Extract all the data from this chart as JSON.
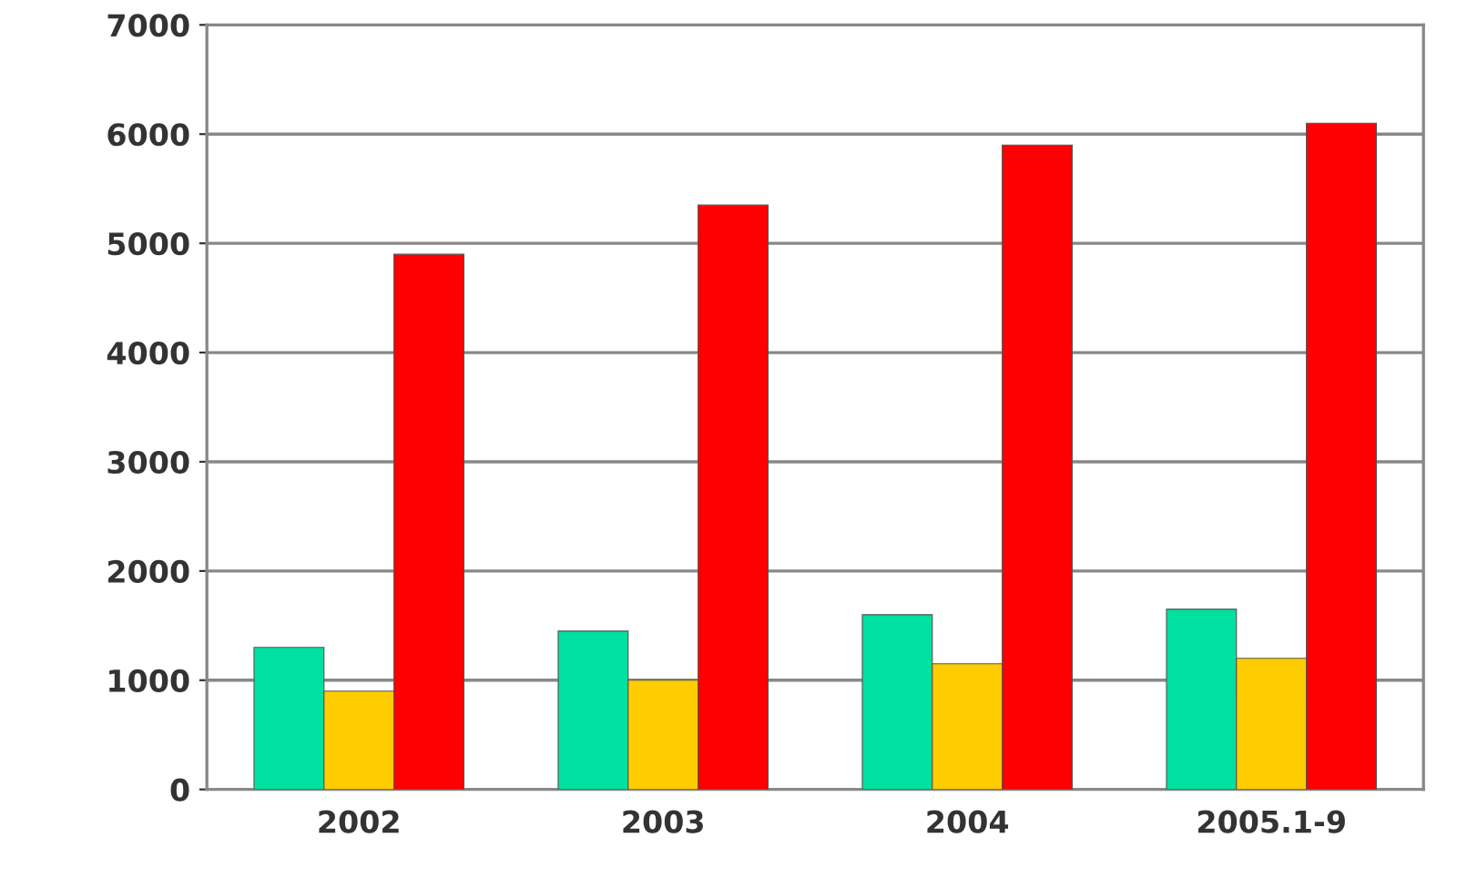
{
  "chart_data": {
    "type": "bar",
    "categories": [
      "2002",
      "2003",
      "2004",
      "2005.1-9"
    ],
    "series": [
      {
        "color": "#00e0a0",
        "values": [
          1300,
          1450,
          1600,
          1650
        ]
      },
      {
        "color": "#ffcc00",
        "values": [
          900,
          1000,
          1150,
          1200
        ]
      },
      {
        "color": "#ff0000",
        "values": [
          4900,
          5350,
          5900,
          6100
        ]
      }
    ],
    "ylim": [
      0,
      7000
    ],
    "yticks": [
      0,
      1000,
      2000,
      3000,
      4000,
      5000,
      6000,
      7000
    ],
    "grid": "y"
  }
}
